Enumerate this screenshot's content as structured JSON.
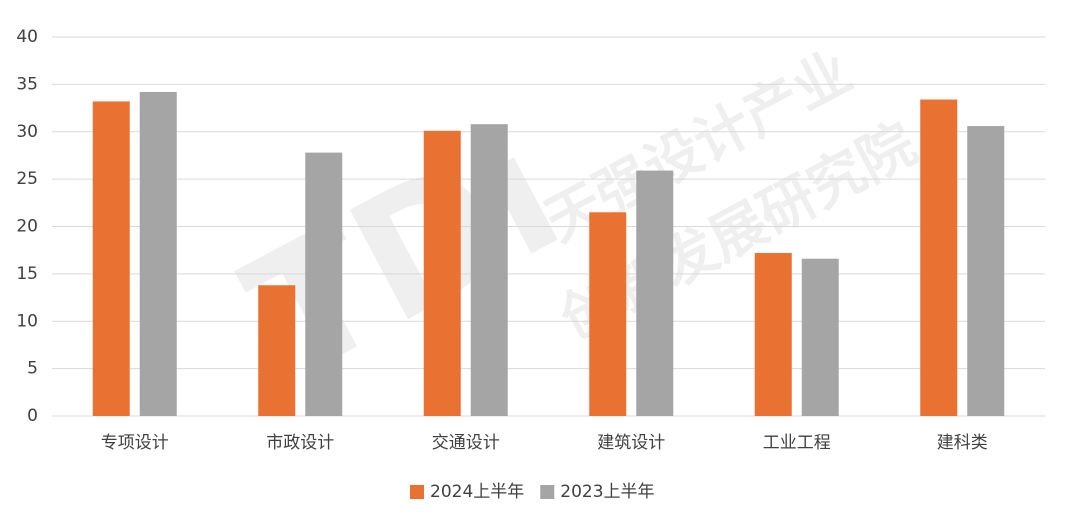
{
  "chart_data": {
    "type": "bar",
    "categories": [
      "专项设计",
      "市政设计",
      "交通设计",
      "建筑设计",
      "工业工程",
      "建科类"
    ],
    "series": [
      {
        "name": "2024上半年",
        "color": "#e97132",
        "values": [
          33.2,
          13.8,
          30.1,
          21.5,
          17.2,
          33.4
        ]
      },
      {
        "name": "2023上半年",
        "color": "#a5a5a5",
        "values": [
          34.2,
          27.8,
          30.8,
          25.9,
          16.6,
          30.6
        ]
      }
    ],
    "ylim": [
      0,
      40
    ],
    "yticks": [
      0,
      5,
      10,
      15,
      20,
      25,
      30,
      35,
      40
    ],
    "grid": true,
    "legend": "bottom",
    "watermark": [
      "TDi",
      "天强设计产业",
      "创新发展研究院"
    ]
  }
}
